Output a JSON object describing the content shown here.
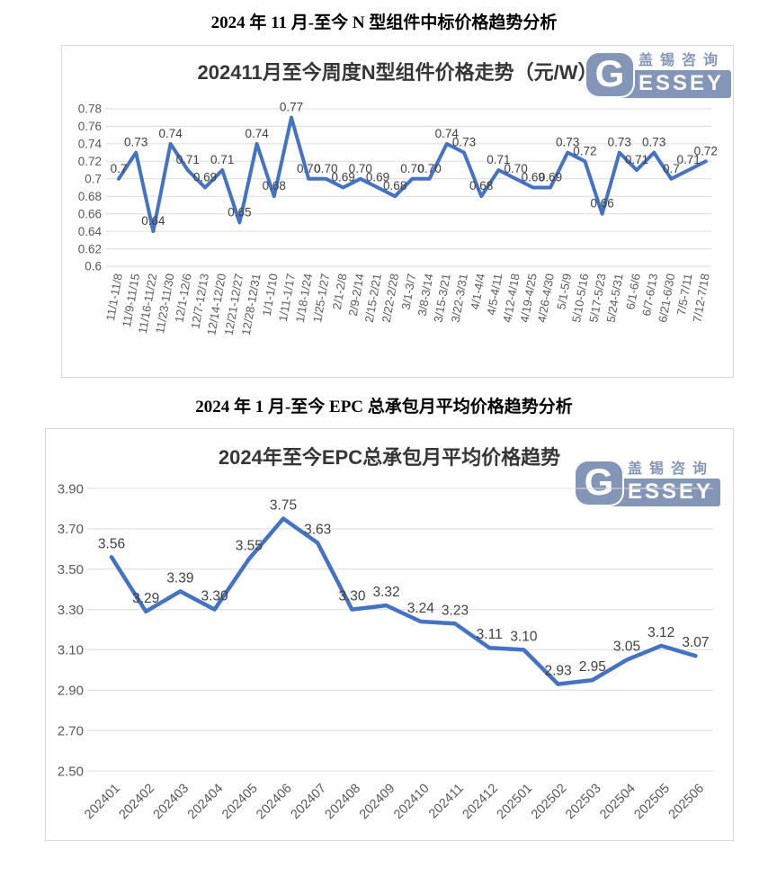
{
  "page": {
    "heading1": "2024 年 11 月-至今 N 型组件中标价格趋势分析",
    "heading2": "2024 年 1 月-至今 EPC 总承包月平均价格趋势分析"
  },
  "logo": {
    "g": "G",
    "cn": "盖锡咨询",
    "en": "ESSEY",
    "color": "#8496B8"
  },
  "chart_data": [
    {
      "type": "line",
      "title": "202411月至今周度N型组件价格走势（元/W）",
      "xlabel": "",
      "ylabel": "",
      "categories": [
        "11/1-11/8",
        "11/9-11/15",
        "11/16-11/22",
        "11/23-11/30",
        "12/1-12/6",
        "12/7-12/13",
        "12/14-12/20",
        "12/21-12/27",
        "12/28-12/31",
        "1/1-1/10",
        "1/11-1/17",
        "1/18-1/24",
        "1/25-1/27",
        "2/1-2/8",
        "2/9-2/14",
        "2/15-2/21",
        "2/22-2/28",
        "3/1-3/7",
        "3/8-3/14",
        "3/15-3/21",
        "3/22-3/31",
        "4/1-4/4",
        "4/5-4/11",
        "4/12-4/18",
        "4/19-4/25",
        "4/26-4/30",
        "5/1-5/9",
        "5/10-5/16",
        "5/17-5/23",
        "5/24-5/31",
        "6/1-6/6",
        "6/7-6/13",
        "6/21-6/30",
        "7/5-7/11",
        "7/12-7/18"
      ],
      "values": [
        0.7,
        0.73,
        0.64,
        0.74,
        0.71,
        0.69,
        0.71,
        0.65,
        0.74,
        0.68,
        0.77,
        0.7,
        0.7,
        0.69,
        0.7,
        0.69,
        0.68,
        0.7,
        0.7,
        0.74,
        0.73,
        0.68,
        0.71,
        0.7,
        0.69,
        0.69,
        0.73,
        0.72,
        0.66,
        0.73,
        0.71,
        0.73,
        0.7,
        0.71,
        0.72
      ],
      "labels": [
        "0.7",
        "0.73",
        "0.64",
        "0.74",
        "0.71",
        "0.69",
        "0.71",
        "0.65",
        "0.74",
        "0.68",
        "0.77",
        "0.70",
        "0.70",
        "0.69",
        "0.70",
        "0.69",
        "0.68",
        "0.70",
        "0.70",
        "0.74",
        "0.73",
        "0.68",
        "0.71",
        "0.70",
        "0.69",
        "0.69",
        "0.73",
        "0.72",
        "0.66",
        "0.73",
        "0.71",
        "0.73",
        "0.7",
        "0.71",
        "0.72"
      ],
      "ylim": [
        0.6,
        0.78
      ],
      "ytick_values": [
        0.78,
        0.76,
        0.74,
        0.72,
        0.7,
        0.68,
        0.66,
        0.64,
        0.62,
        0.6
      ],
      "ytick_labels": [
        "0.78",
        "0.76",
        "0.74",
        "0.72",
        "0.7",
        "0.68",
        "0.66",
        "0.64",
        "0.62",
        "0.6"
      ],
      "grid": true,
      "legend": "none",
      "x_label_rotation": -80,
      "line_color": "#4472C4",
      "grid_color": "#DCDCDC",
      "axis_color": "#595959",
      "label_color": "#404040"
    },
    {
      "type": "line",
      "title": "2024年至今EPC总承包月平均价格趋势",
      "xlabel": "",
      "ylabel": "",
      "categories": [
        "202401",
        "202402",
        "202403",
        "202404",
        "202405",
        "202406",
        "202407",
        "202408",
        "202409",
        "202410",
        "202411",
        "202412",
        "202501",
        "202502",
        "202503",
        "202504",
        "202505",
        "202506"
      ],
      "values": [
        3.56,
        3.29,
        3.39,
        3.3,
        3.55,
        3.75,
        3.63,
        3.3,
        3.32,
        3.24,
        3.23,
        3.11,
        3.1,
        2.93,
        2.95,
        3.05,
        3.12,
        3.07
      ],
      "labels": [
        "3.56",
        "3.29",
        "3.39",
        "3.30",
        "3.55",
        "3.75",
        "3.63",
        "3.30",
        "3.32",
        "3.24",
        "3.23",
        "3.11",
        "3.10",
        "2.93",
        "2.95",
        "3.05",
        "3.12",
        "3.07"
      ],
      "ylim": [
        2.5,
        3.9
      ],
      "ytick_values": [
        3.9,
        3.7,
        3.5,
        3.3,
        3.1,
        2.9,
        2.7,
        2.5
      ],
      "ytick_labels": [
        "3.90",
        "3.70",
        "3.50",
        "3.30",
        "3.10",
        "2.90",
        "2.70",
        "2.50"
      ],
      "grid": true,
      "legend": "none",
      "x_label_rotation": -45,
      "line_color": "#4472C4",
      "grid_color": "#DCDCDC",
      "axis_color": "#595959",
      "label_color": "#404040"
    }
  ]
}
